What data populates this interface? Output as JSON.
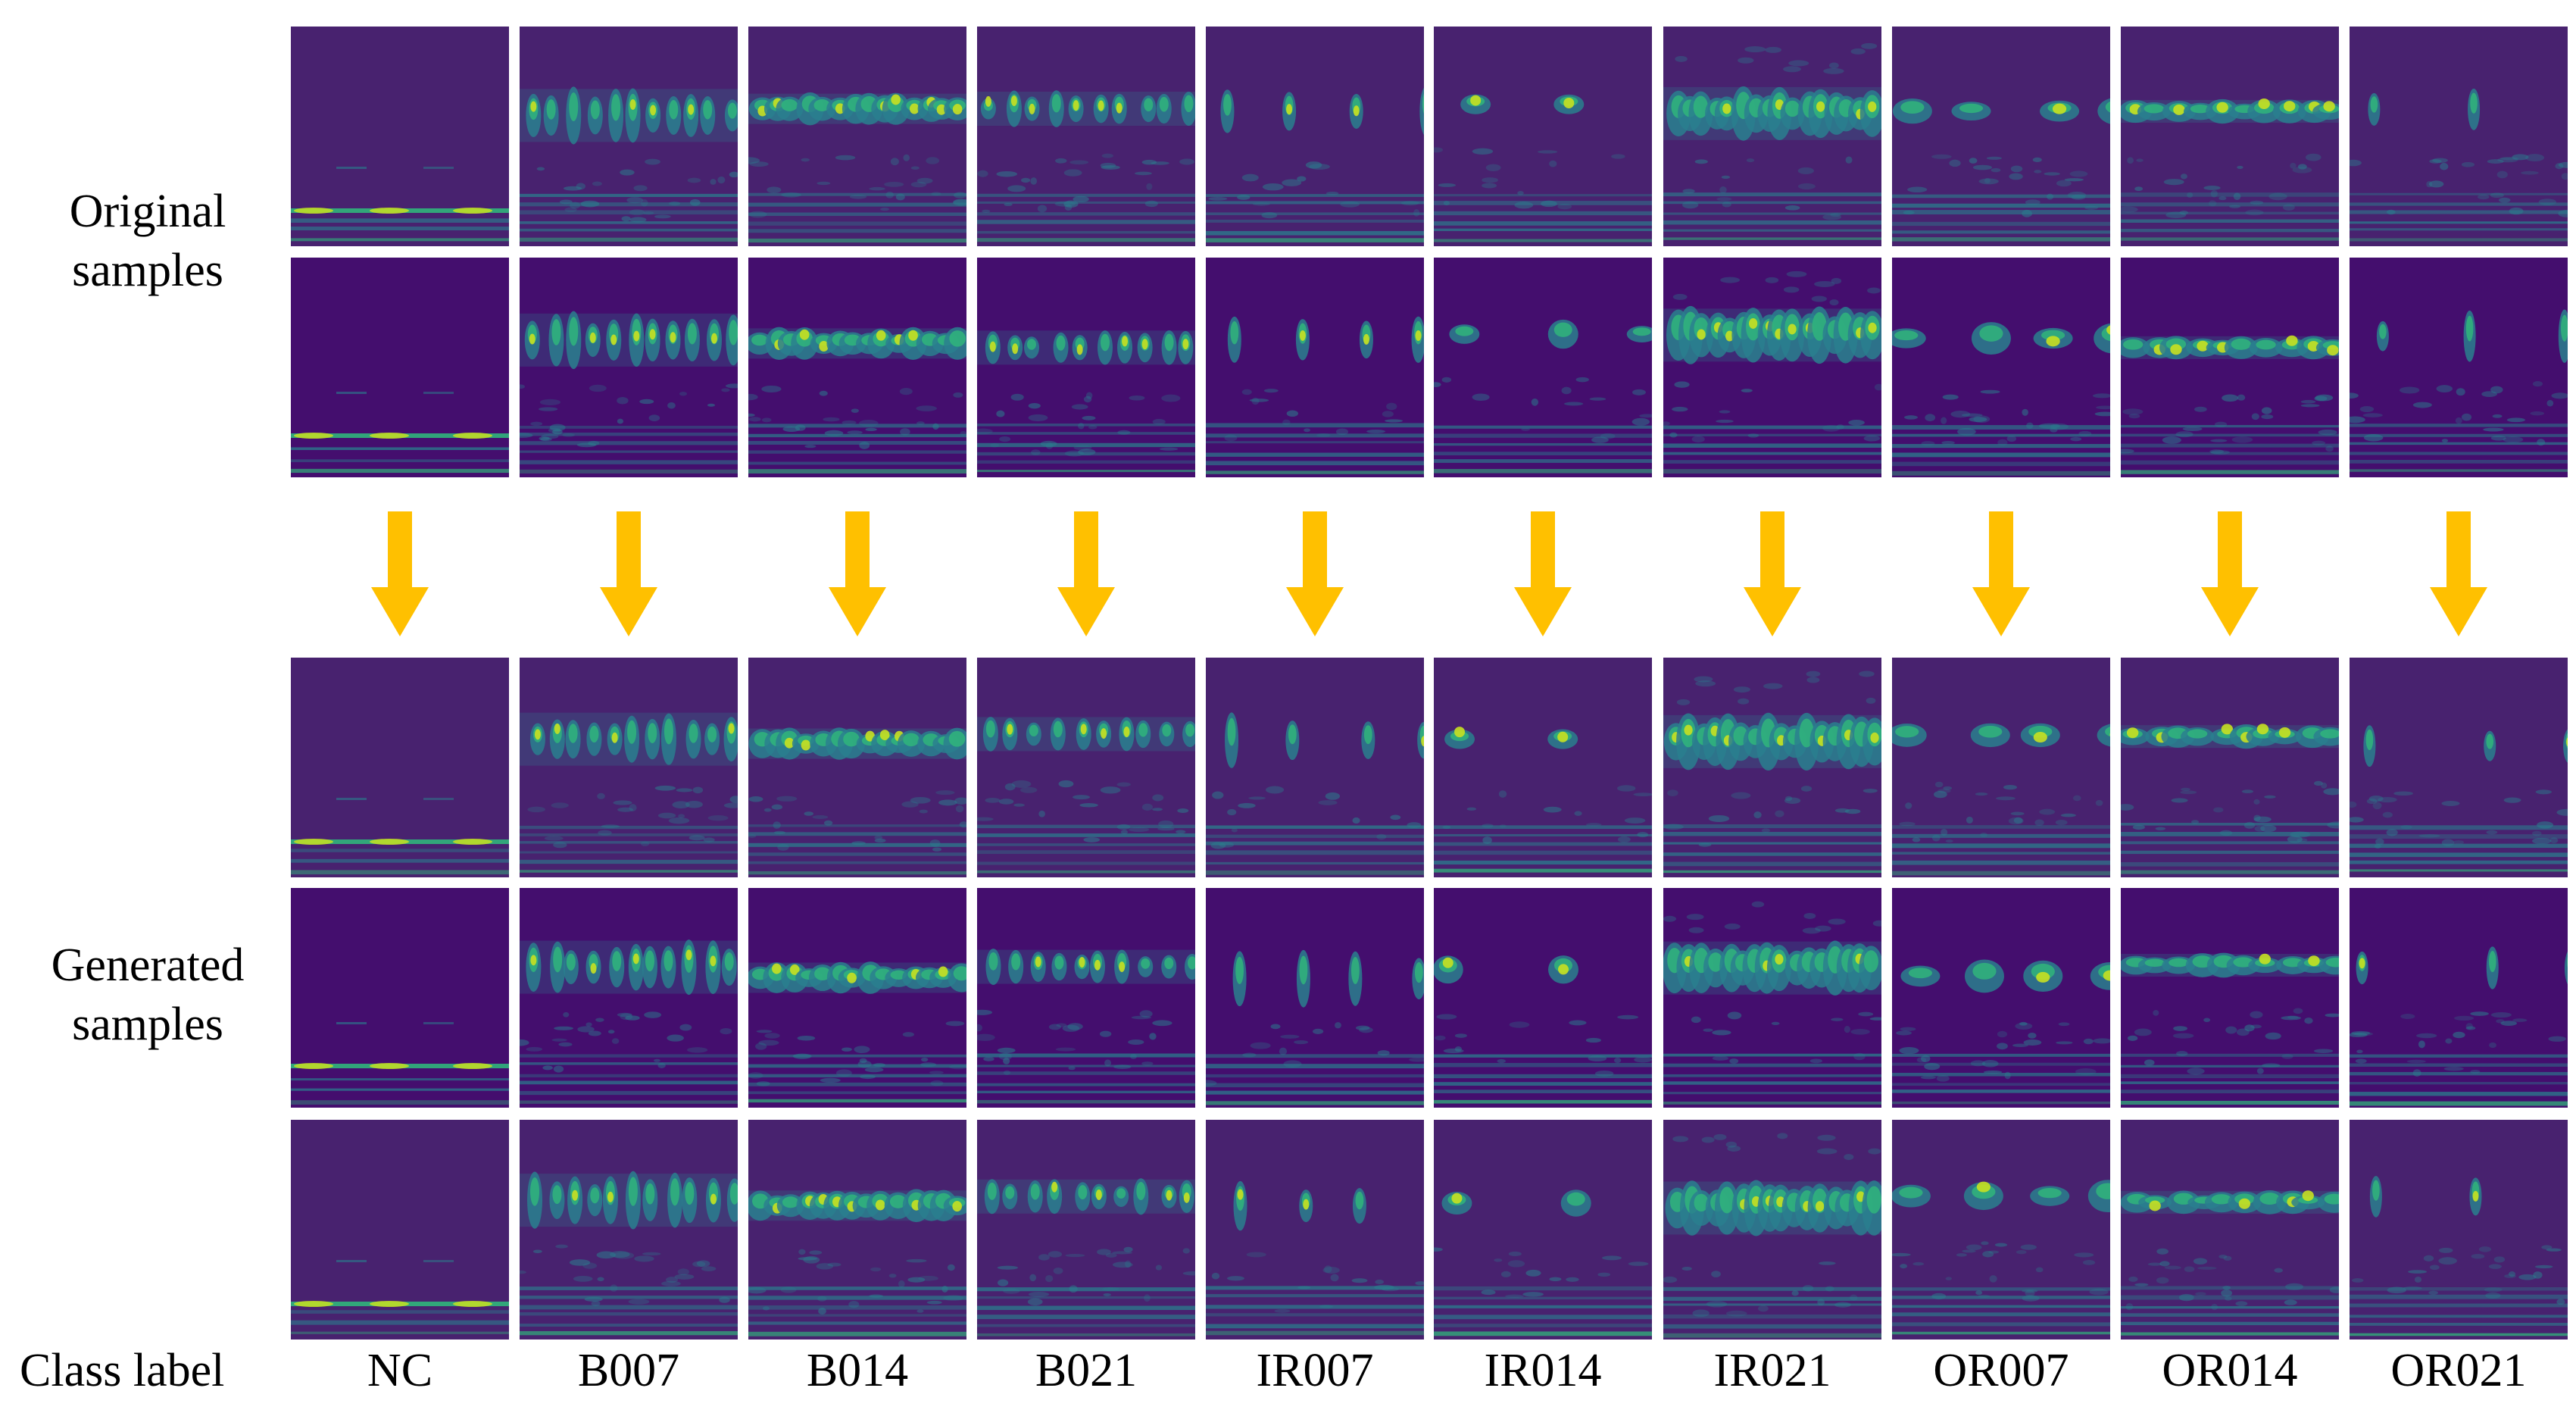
{
  "row_labels": {
    "original": "Original\nsamples",
    "original_line1": "Original",
    "original_line2": "samples",
    "generated_line1": "Generated",
    "generated_line2": "samples",
    "class_title": "Class label"
  },
  "classes": [
    "NC",
    "B007",
    "B014",
    "B021",
    "IR007",
    "IR014",
    "IR021",
    "OR007",
    "OR014",
    "OR021"
  ],
  "sections": [
    {
      "name": "original",
      "sample_count": 2
    },
    {
      "name": "generated",
      "sample_count": 3
    }
  ],
  "colors": {
    "background": "#440e6e",
    "background_light": "#48226f",
    "band_teal": "#2a7f8e",
    "band_green": "#30b57b",
    "peak_yellow": "#c8e021",
    "arrow": "#ffc000"
  },
  "arrow_icon": "down-arrow-icon"
}
